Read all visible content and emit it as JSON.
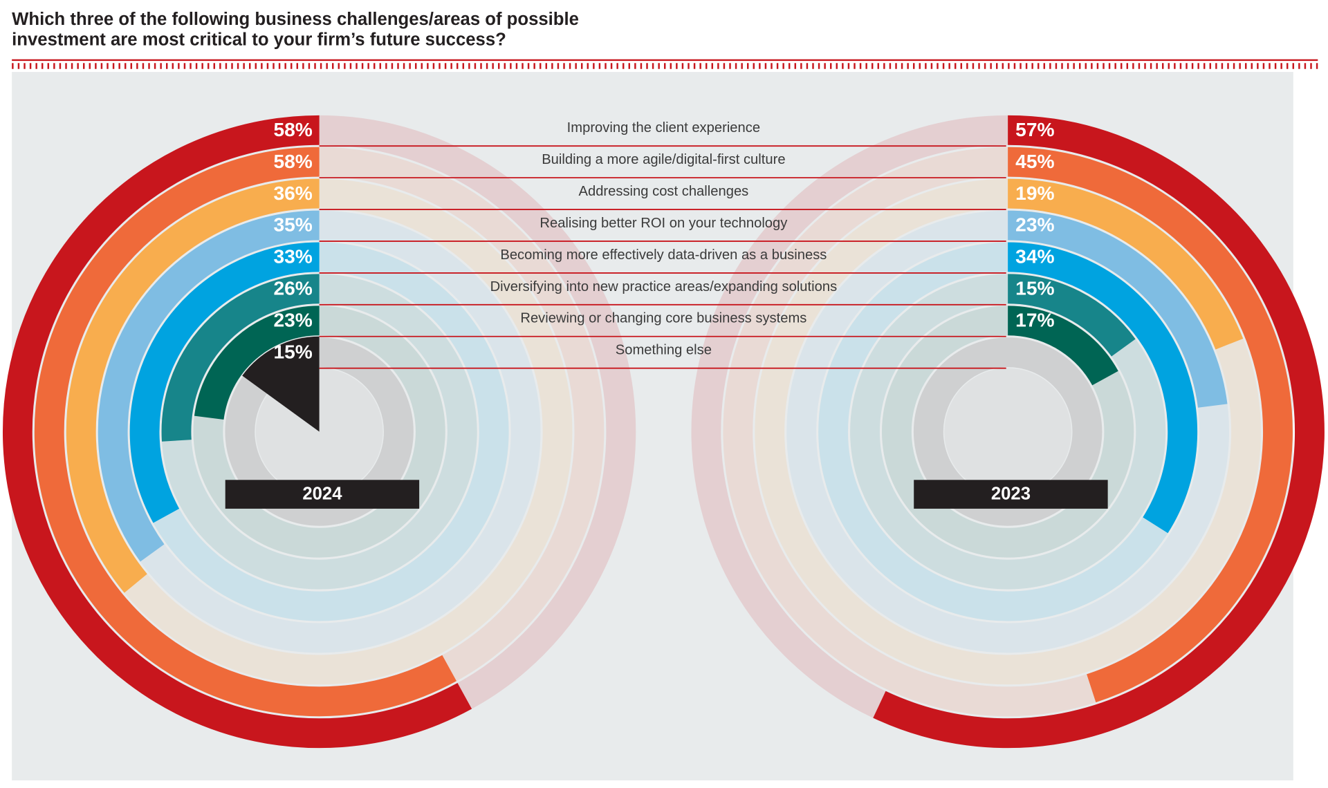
{
  "chart_data": {
    "type": "radial-bar",
    "title": "Which three of the following business challenges/areas of possible investment are most critical to your firm’s future success?",
    "title_lines": [
      "Which three of the following business challenges/areas of possible",
      "investment are most critical to your firm’s future success?"
    ],
    "categories": [
      "Improving the client experience",
      "Building a more agile/digital-first culture",
      "Addressing cost challenges",
      "Realising better ROI on your technology",
      "Becoming more effectively data-driven as a business",
      "Diversifying into new practice areas/expanding solutions",
      "Reviewing or changing core business systems",
      "Something else"
    ],
    "colors": [
      "#c8161d",
      "#ef6a3a",
      "#f8ad4e",
      "#7fbde3",
      "#00a3e0",
      "#17858a",
      "#006554",
      "#231f20"
    ],
    "max": 100,
    "series": [
      {
        "name": "2024",
        "values": [
          58,
          58,
          36,
          35,
          33,
          26,
          23,
          15
        ],
        "value_labels": [
          "58%",
          "58%",
          "36%",
          "35%",
          "33%",
          "26%",
          "23%",
          "15%"
        ]
      },
      {
        "name": "2023",
        "values": [
          57,
          45,
          19,
          23,
          34,
          15,
          17,
          null
        ],
        "value_labels": [
          "57%",
          "45%",
          "19%",
          "23%",
          "34%",
          "15%",
          "17%",
          null
        ]
      }
    ]
  }
}
